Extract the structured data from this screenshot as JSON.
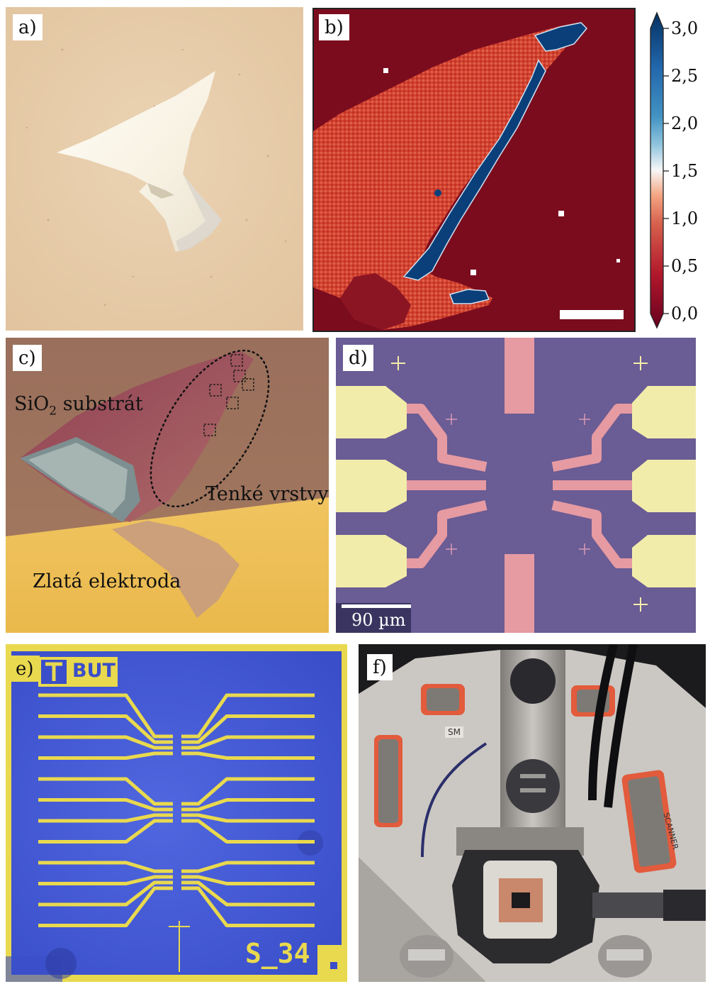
{
  "panels": {
    "a": {
      "label": "a)"
    },
    "b": {
      "label": "b)"
    },
    "c": {
      "label": "c)",
      "substrate": {
        "main": "SiO",
        "sub": "2",
        "rest": " substrát"
      },
      "thin_layers": "Tenké vrstvy",
      "gold_electrode": "Zlatá elektroda"
    },
    "d": {
      "label": "d)",
      "scale_bar": "90 µm"
    },
    "e": {
      "label": "e)",
      "logo": "BUT",
      "sample_id": "S_34"
    },
    "f": {
      "label": "f)",
      "tag1": "SM",
      "tag2": "SCANNER"
    }
  },
  "colorbar": {
    "min": 0.0,
    "max": 3.0,
    "tick_values": [
      0.0,
      0.5,
      1.0,
      1.5,
      2.0,
      2.5,
      3.0
    ],
    "tick_labels": [
      "0,0",
      "0,5",
      "1,0",
      "1,5",
      "2,0",
      "2,5",
      "3,0"
    ],
    "colors": {
      "low": "#67001f",
      "mid": "#f7f7f7",
      "high": "#053061"
    }
  },
  "colors": {
    "map_background": "#7b0c1e",
    "device_purple": "#6a5c94",
    "gold_pad": "#f2ecab",
    "chip_blue": "#3f55d8",
    "chip_gold": "#e9d94e"
  }
}
